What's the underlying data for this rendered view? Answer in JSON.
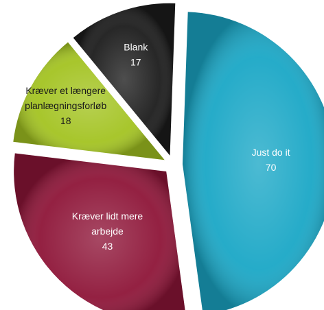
{
  "chart_data": {
    "type": "pie",
    "title": "",
    "slices": [
      {
        "label_lines": [
          "Just do it"
        ],
        "value": 70,
        "color": "#1aa7c6",
        "label_color": "#ffffff"
      },
      {
        "label_lines": [
          "Kræver lidt mere",
          "arbejde"
        ],
        "value": 43,
        "color": "#8e1538",
        "label_color": "#ffffff"
      },
      {
        "label_lines": [
          "Kræver et længere",
          "planlægningsforløb"
        ],
        "value": 18,
        "color": "#a3c321",
        "label_color": "#1a1a1a"
      },
      {
        "label_lines": [
          "Blank"
        ],
        "value": 17,
        "color": "#1c1c1c",
        "label_color": "#ffffff"
      }
    ]
  }
}
